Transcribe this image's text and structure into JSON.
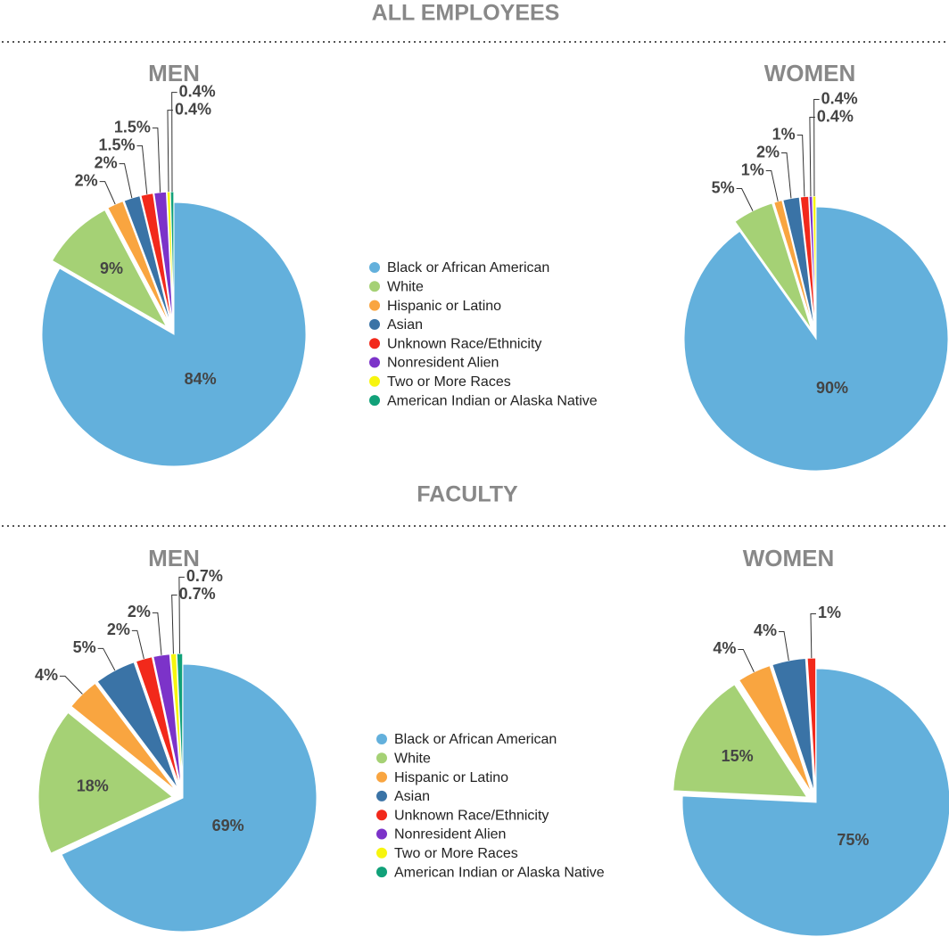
{
  "sections": [
    {
      "title": "ALL EMPLOYEES"
    },
    {
      "title": "FACULTY"
    }
  ],
  "chart_data": [
    {
      "type": "pie",
      "title": "MEN",
      "categories": [
        "Black or African American",
        "White",
        "Hispanic or Latino",
        "Asian",
        "Unknown Race/Ethnicity",
        "Nonresident Alien",
        "Two or More Races",
        "American Indian or Alaska Native"
      ],
      "values": [
        84,
        9,
        2,
        2,
        1.5,
        1.5,
        0.4,
        0.4
      ],
      "value_labels": [
        "84%",
        "9%",
        "2%",
        "2%",
        "1.5%",
        "1.5%",
        "0.4%",
        "0.4%"
      ],
      "colors": [
        "#63b0dc",
        "#a5d175",
        "#f9a540",
        "#3a73a6",
        "#f2291b",
        "#7c33c9",
        "#f7f50e",
        "#11a179"
      ]
    },
    {
      "type": "pie",
      "title": "WOMEN",
      "categories": [
        "Black or African American",
        "White",
        "Hispanic or Latino",
        "Asian",
        "Unknown Race/Ethnicity",
        "Nonresident Alien",
        "Two or More Races"
      ],
      "values": [
        90,
        5,
        1,
        2,
        1,
        0.4,
        0.4
      ],
      "value_labels": [
        "90%",
        "5%",
        "1%",
        "2%",
        "1%",
        "0.4%",
        "0.4%"
      ],
      "colors": [
        "#63b0dc",
        "#a5d175",
        "#f9a540",
        "#3a73a6",
        "#f2291b",
        "#7c33c9",
        "#f7f50e"
      ]
    },
    {
      "type": "pie",
      "title": "MEN",
      "categories": [
        "Black or African American",
        "White",
        "Hispanic or Latino",
        "Asian",
        "Unknown Race/Ethnicity",
        "Nonresident Alien",
        "Two or More Races",
        "American Indian or Alaska Native"
      ],
      "values": [
        69,
        18,
        4,
        5,
        2,
        2,
        0.7,
        0.7
      ],
      "value_labels": [
        "69%",
        "18%",
        "4%",
        "5%",
        "2%",
        "2%",
        "0.7%",
        "0.7%"
      ],
      "colors": [
        "#63b0dc",
        "#a5d175",
        "#f9a540",
        "#3a73a6",
        "#f2291b",
        "#7c33c9",
        "#f7f50e",
        "#11a179"
      ]
    },
    {
      "type": "pie",
      "title": "WOMEN",
      "categories": [
        "Black or African American",
        "White",
        "Hispanic or Latino",
        "Asian",
        "Unknown Race/Ethnicity"
      ],
      "values": [
        75,
        15,
        4,
        4,
        1
      ],
      "value_labels": [
        "75%",
        "15%",
        "4%",
        "4%",
        "1%"
      ],
      "colors": [
        "#63b0dc",
        "#a5d175",
        "#f9a540",
        "#3a73a6",
        "#f2291b"
      ]
    }
  ]
}
